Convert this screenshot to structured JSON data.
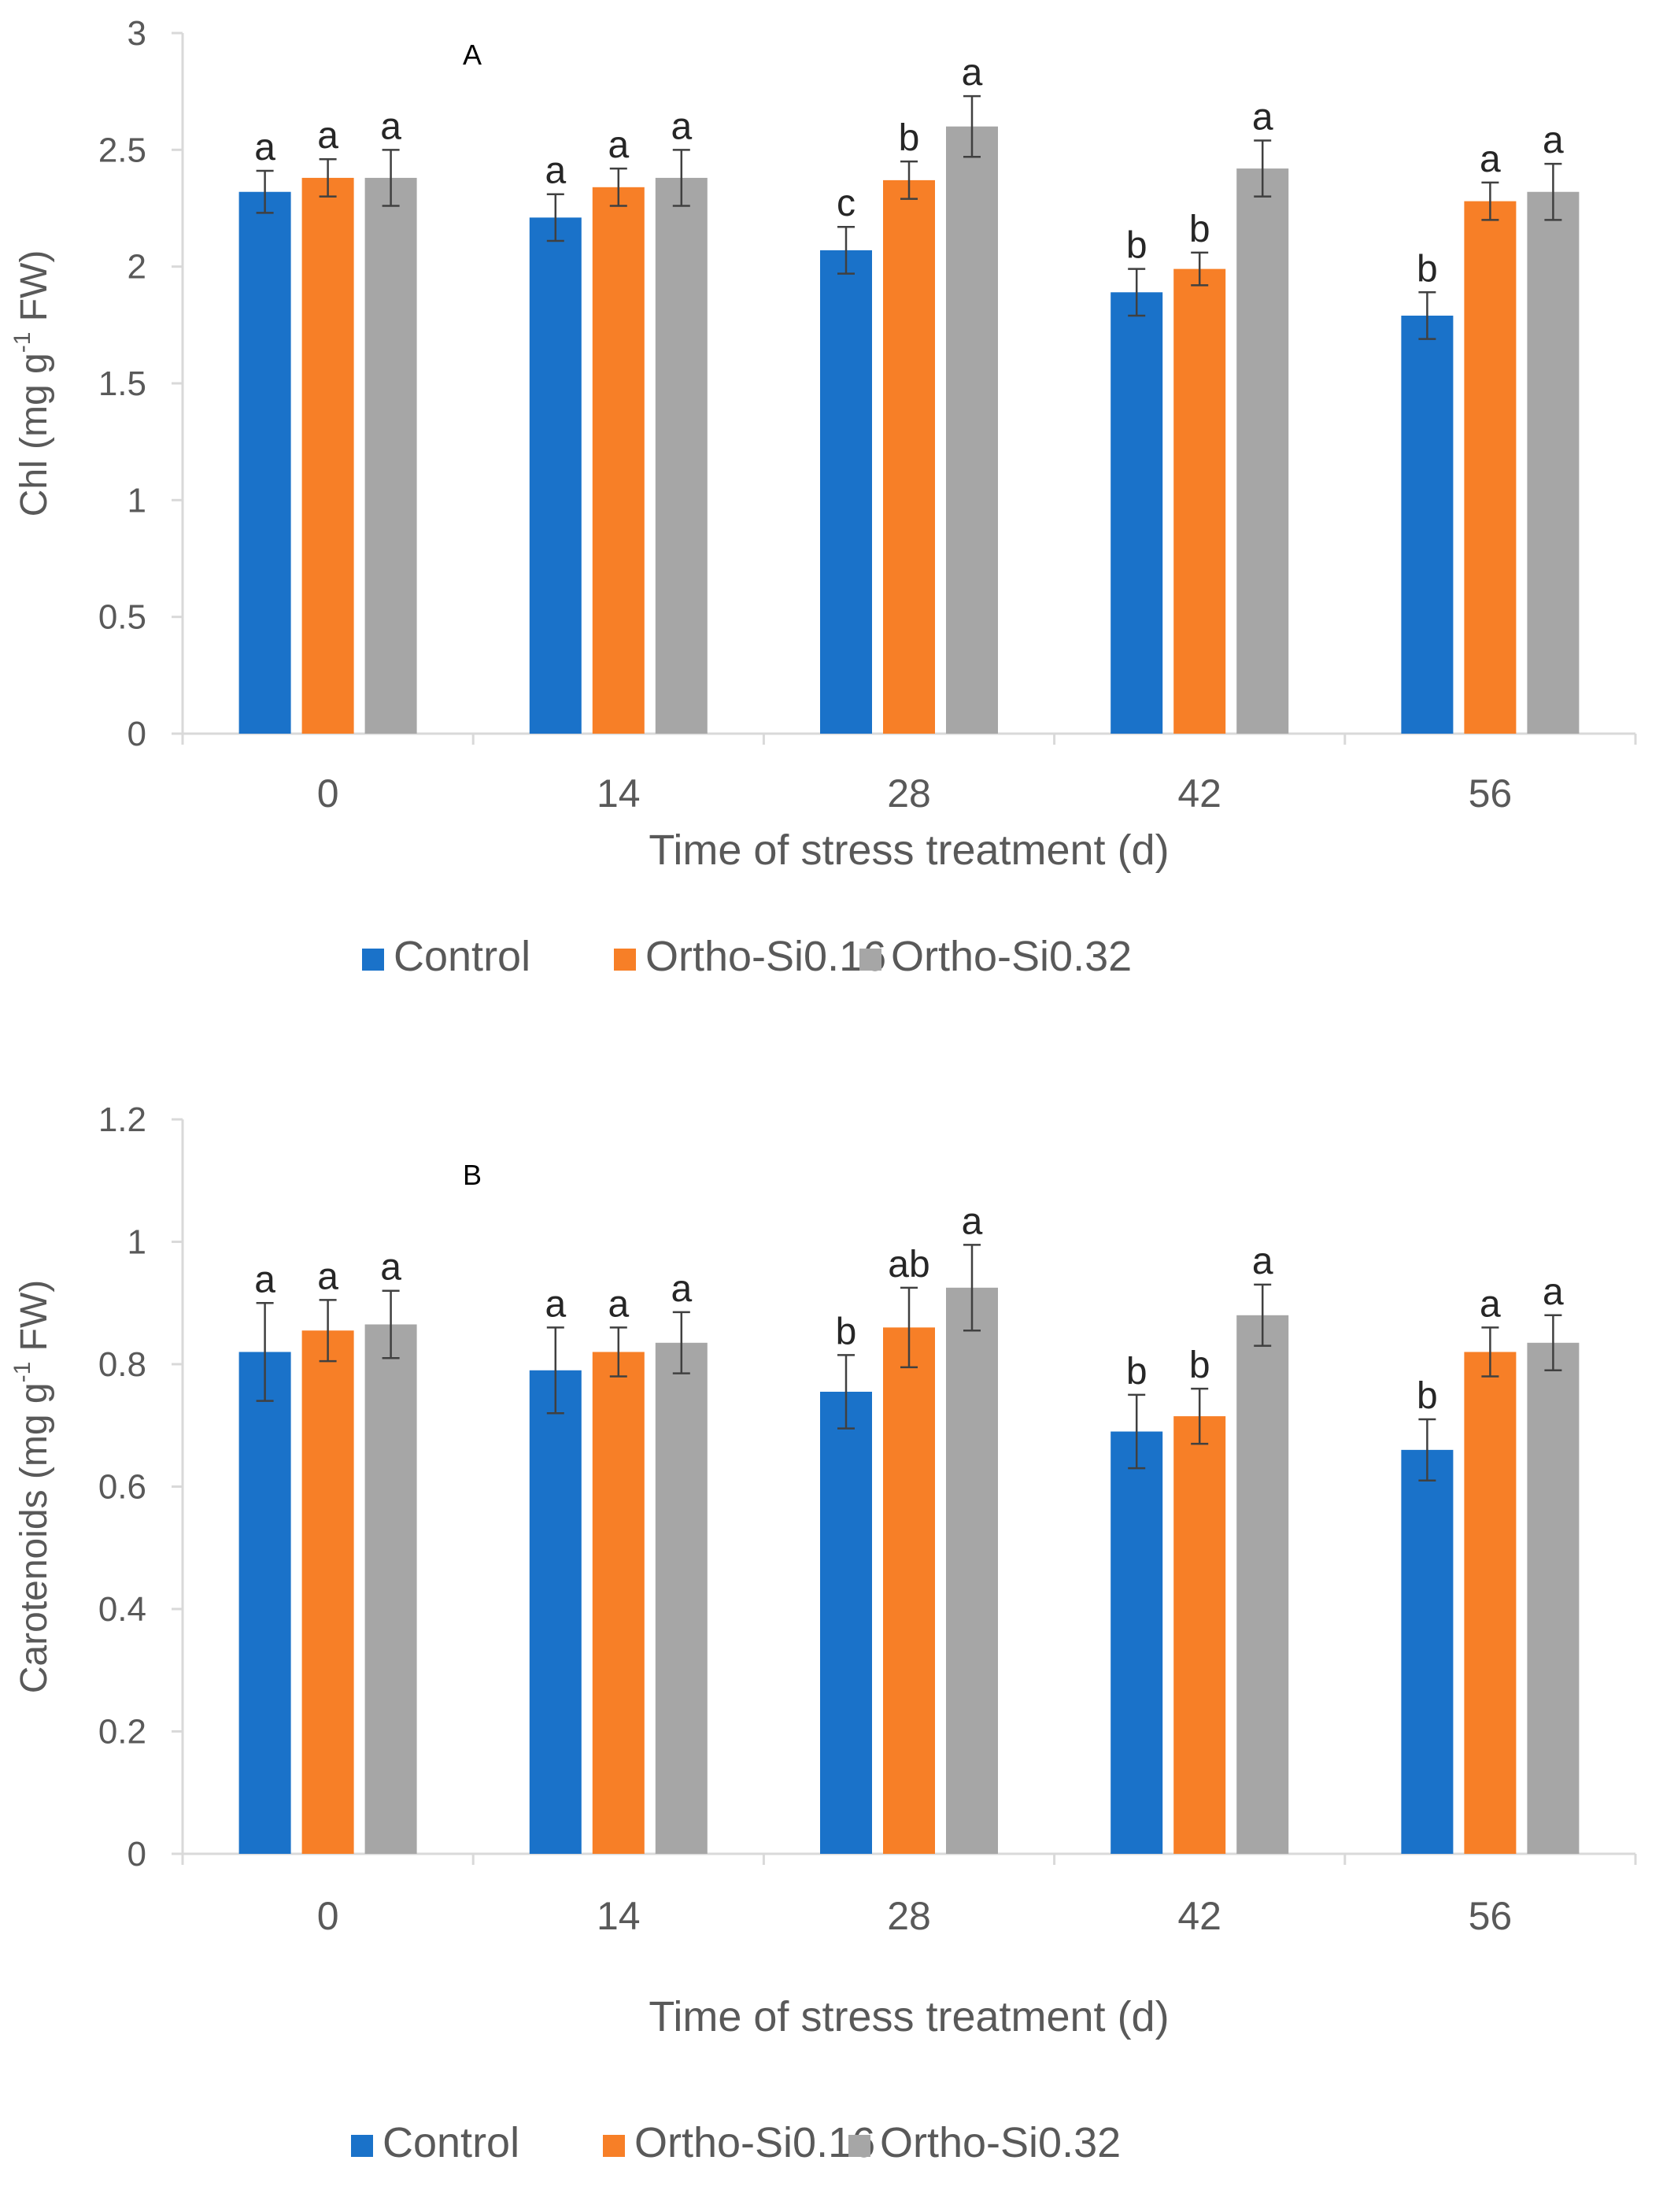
{
  "chart_data": [
    {
      "type": "bar",
      "panel_label": "A",
      "categories": [
        "0",
        "14",
        "28",
        "42",
        "56"
      ],
      "xlabel": "Time of stress treatment (d)",
      "ylabel_main": "Chl (mg g",
      "ylabel_sup": "-1",
      "ylabel_tail": " FW)",
      "ylim": [
        0,
        3
      ],
      "yticks": [
        "0",
        "0.5",
        "1",
        "1.5",
        "2",
        "2.5",
        "3"
      ],
      "grid": false,
      "legend_position": "bottom",
      "series": [
        {
          "name": "Control",
          "color": "#1a72c9",
          "values": [
            2.32,
            2.21,
            2.07,
            1.89,
            1.79
          ],
          "errors": [
            0.09,
            0.1,
            0.1,
            0.1,
            0.1
          ],
          "letters": [
            "a",
            "a",
            "c",
            "b",
            "b"
          ]
        },
        {
          "name": "Ortho-Si0.16",
          "color": "#f77f27",
          "values": [
            2.38,
            2.34,
            2.37,
            1.99,
            2.28
          ],
          "errors": [
            0.08,
            0.08,
            0.08,
            0.07,
            0.08
          ],
          "letters": [
            "a",
            "a",
            "b",
            "b",
            "a"
          ]
        },
        {
          "name": "Ortho-Si0.32",
          "color": "#a6a6a6",
          "values": [
            2.38,
            2.38,
            2.6,
            2.42,
            2.32
          ],
          "errors": [
            0.12,
            0.12,
            0.13,
            0.12,
            0.12
          ],
          "letters": [
            "a",
            "a",
            "a",
            "a",
            "a"
          ]
        }
      ]
    },
    {
      "type": "bar",
      "panel_label": "B",
      "categories": [
        "0",
        "14",
        "28",
        "42",
        "56"
      ],
      "xlabel": "Time of stress treatment (d)",
      "ylabel_main": "Carotenoids (mg g",
      "ylabel_sup": "-1",
      "ylabel_tail": " FW)",
      "ylim": [
        0,
        1.2
      ],
      "yticks": [
        "0",
        "0.2",
        "0.4",
        "0.6",
        "0.8",
        "1",
        "1.2"
      ],
      "grid": false,
      "legend_position": "bottom",
      "series": [
        {
          "name": "Control",
          "color": "#1a72c9",
          "values": [
            0.82,
            0.79,
            0.755,
            0.69,
            0.66
          ],
          "errors": [
            0.08,
            0.07,
            0.06,
            0.06,
            0.05
          ],
          "letters": [
            "a",
            "a",
            "b",
            "b",
            "b"
          ]
        },
        {
          "name": "Ortho-Si0.16",
          "color": "#f77f27",
          "values": [
            0.855,
            0.82,
            0.86,
            0.715,
            0.82
          ],
          "errors": [
            0.05,
            0.04,
            0.065,
            0.045,
            0.04
          ],
          "letters": [
            "a",
            "a",
            "ab",
            "b",
            "a"
          ]
        },
        {
          "name": "Ortho-Si0.32",
          "color": "#a6a6a6",
          "values": [
            0.865,
            0.835,
            0.925,
            0.88,
            0.835
          ],
          "errors": [
            0.055,
            0.05,
            0.07,
            0.05,
            0.045
          ],
          "letters": [
            "a",
            "a",
            "a",
            "a",
            "a"
          ]
        }
      ]
    }
  ]
}
